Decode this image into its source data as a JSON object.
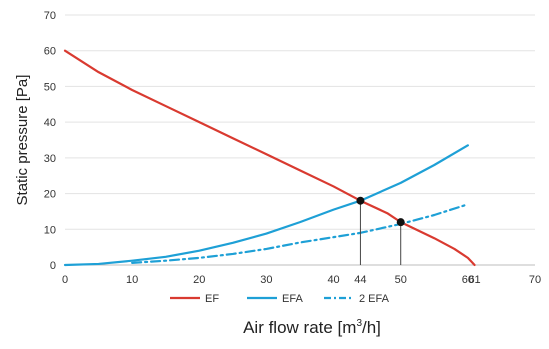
{
  "chart_data": {
    "type": "line",
    "title": "",
    "xlabel": "Air flow rate [m",
    "xlabel_sup": "3",
    "xlabel_end": "/h]",
    "ylabel": "Static pressure  [Pa]",
    "xlim": [
      0,
      70
    ],
    "ylim": [
      0,
      70
    ],
    "x_ticks": [
      "0",
      "10",
      "20",
      "30",
      "40",
      "44",
      "50",
      "60",
      "61",
      "70"
    ],
    "x_tick_values": [
      0,
      10,
      20,
      30,
      40,
      44,
      50,
      60,
      61,
      70
    ],
    "y_ticks": [
      "0",
      "10",
      "20",
      "30",
      "40",
      "50",
      "60",
      "70"
    ],
    "y_tick_values": [
      0,
      10,
      20,
      30,
      40,
      50,
      60,
      70
    ],
    "grid": "horizontal",
    "legend_position": "bottom",
    "series": [
      {
        "name": "EF",
        "color": "#d93a30",
        "style": "solid",
        "x": [
          0,
          5,
          10,
          15,
          20,
          25,
          30,
          35,
          40,
          44,
          48,
          50,
          55,
          58,
          60,
          60.5,
          61
        ],
        "y": [
          60,
          54,
          49,
          44.5,
          40,
          35.5,
          31,
          26.5,
          22,
          18,
          14.5,
          12,
          7.5,
          4.5,
          2,
          1,
          0
        ]
      },
      {
        "name": "EFA",
        "color": "#1ea0d6",
        "style": "solid",
        "x": [
          0,
          5,
          10,
          15,
          20,
          25,
          30,
          35,
          40,
          44,
          50,
          55,
          60
        ],
        "y": [
          0,
          0.3,
          1.2,
          2.3,
          4.0,
          6.2,
          8.8,
          12.0,
          15.5,
          18,
          23,
          28,
          33.5
        ]
      },
      {
        "name": "2 EFA",
        "color": "#1ea0d6",
        "style": "dashdot",
        "x": [
          10,
          15,
          20,
          25,
          30,
          35,
          40,
          44,
          50,
          55,
          60
        ],
        "y": [
          0.6,
          1.2,
          2.0,
          3.1,
          4.5,
          6.3,
          7.8,
          9,
          11.5,
          14,
          17
        ]
      }
    ],
    "operating_points": [
      {
        "x": 44,
        "y": 18
      },
      {
        "x": 50,
        "y": 12
      }
    ]
  }
}
